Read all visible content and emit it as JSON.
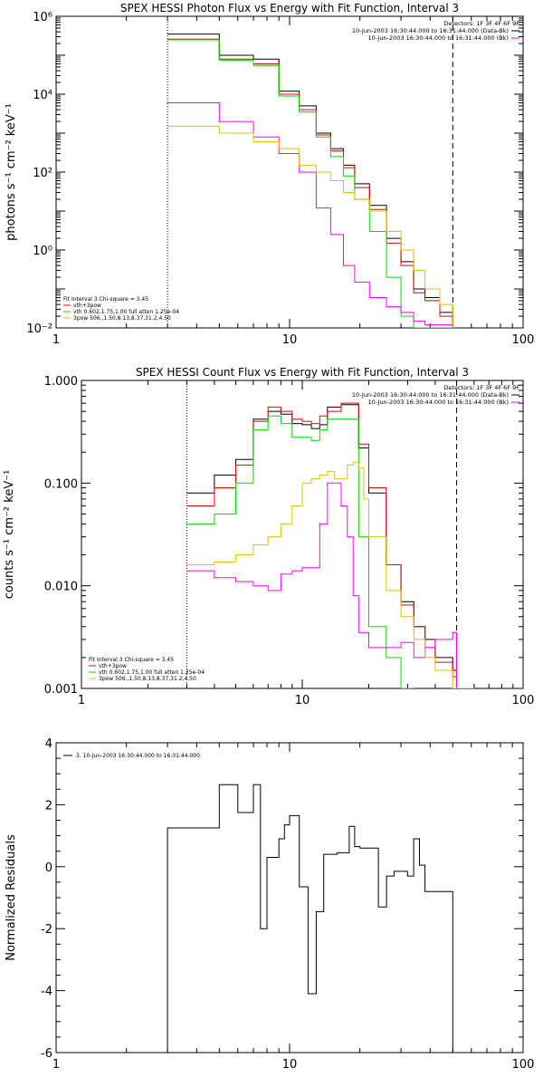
{
  "chart_data": [
    {
      "type": "line",
      "title": "SPEX HESSI Photon Flux vs Energy with Fit Function, Interval 3",
      "ylabel": "photons s⁻¹ cm⁻² keV⁻¹",
      "xscale": "log",
      "yscale": "log",
      "xlim": [
        1,
        100
      ],
      "ylim": [
        0.01,
        1000000
      ],
      "x_ticks": [
        {
          "value": 1,
          "label": "1"
        },
        {
          "value": 10,
          "label": "10"
        },
        {
          "value": 100,
          "label": "100"
        }
      ],
      "y_ticks": [
        {
          "value": 0.01,
          "label": "10⁻²"
        },
        {
          "value": 1,
          "label": "10⁰"
        },
        {
          "value": 100,
          "label": "10²"
        },
        {
          "value": 10000,
          "label": "10⁴"
        },
        {
          "value": 1000000,
          "label": "10⁶"
        }
      ],
      "header_lines": [
        "Detectors: 1F 3F 4F 6F 9F",
        "10-Jun-2003 16:30:44.000 to 16:31:44.000 (Data-Bk)",
        "10-Jun-2003 16:30:44.000 to 16:31:44.000 (Bk)"
      ],
      "legend_lines": [
        "Fit Interval 3   Chi-square = 3.45",
        "vth+3pow",
        "vth 0.602,1.75,1.00  full atten 1.25e-04",
        "3pow 506.,1.50,8.13,8.37,31.2,4.50"
      ],
      "edges": [
        3,
        3.5,
        4,
        4.5,
        5,
        5.5,
        6,
        6.5,
        7,
        7.5,
        8,
        8.5,
        9,
        9.5,
        10,
        11,
        12,
        13,
        14,
        15,
        16,
        17,
        18,
        19,
        20,
        22,
        24,
        26,
        28,
        30,
        32,
        34,
        36,
        38,
        40,
        44,
        48,
        50
      ],
      "vlines": [
        {
          "x": 3,
          "style": "dotted"
        },
        {
          "x": 50,
          "style": "dashed"
        }
      ],
      "series": [
        {
          "name": "Data-Bk",
          "color": "#000000",
          "values": [
            350000,
            350000,
            350000,
            350000,
            100000,
            100000,
            100000,
            100000,
            80000,
            80000,
            80000,
            80000,
            12000,
            12000,
            12000,
            5000,
            5000,
            1000,
            1000,
            400,
            400,
            150,
            150,
            50,
            50,
            14,
            14,
            2,
            2,
            0.5,
            0.5,
            0.1,
            0.1,
            0.06,
            0.06,
            0.025,
            0.025
          ]
        },
        {
          "name": "vth+3pow",
          "color": "#e8000b",
          "values": [
            260000,
            260000,
            260000,
            260000,
            80000,
            80000,
            80000,
            80000,
            60000,
            60000,
            60000,
            60000,
            10000,
            10000,
            10000,
            4000,
            4000,
            900,
            900,
            350,
            350,
            130,
            130,
            40,
            40,
            11,
            11,
            1.5,
            1.5,
            0.4,
            0.4,
            0.08,
            0.08,
            0.05,
            0.05,
            0.02,
            0.02
          ]
        },
        {
          "name": "vth",
          "color": "#00dd00",
          "values": [
            250000,
            250000,
            250000,
            250000,
            75000,
            75000,
            75000,
            75000,
            55000,
            55000,
            55000,
            55000,
            9000,
            9000,
            9000,
            3500,
            3500,
            800,
            800,
            250,
            250,
            80,
            80,
            20,
            20,
            3,
            3,
            0.2,
            0.2,
            0.02,
            0.02,
            0.01,
            0.01,
            0.01,
            0.01,
            0.01,
            0.01
          ]
        },
        {
          "name": "3pow",
          "color": "#ff00ff",
          "values": [
            6000,
            6000,
            6000,
            6000,
            2000,
            2000,
            2000,
            2000,
            800,
            800,
            800,
            800,
            300,
            300,
            300,
            100,
            100,
            12,
            12,
            2.5,
            2.5,
            0.4,
            0.4,
            0.15,
            0.15,
            0.06,
            0.06,
            0.035,
            0.035,
            0.025,
            0.025,
            0.015,
            0.015,
            0.012,
            0.012,
            0.012,
            0.012
          ]
        },
        {
          "name": "pow",
          "color": "#e0c000",
          "values": [
            1500,
            1500,
            1500,
            1500,
            1000,
            1000,
            1000,
            1000,
            600,
            600,
            600,
            600,
            400,
            400,
            400,
            150,
            150,
            100,
            100,
            60,
            60,
            30,
            30,
            20,
            20,
            10,
            10,
            3,
            3,
            1,
            1,
            0.3,
            0.3,
            0.1,
            0.1,
            0.04,
            0.04
          ]
        }
      ]
    },
    {
      "type": "line",
      "title": "SPEX HESSI Count Flux vs Energy with Fit Function, Interval 3",
      "ylabel": "counts s⁻¹ cm⁻² keV⁻¹",
      "xscale": "log",
      "yscale": "log",
      "xlim": [
        1,
        100
      ],
      "ylim": [
        0.001,
        1.0
      ],
      "x_ticks": [
        {
          "value": 1,
          "label": "1"
        },
        {
          "value": 10,
          "label": "10"
        },
        {
          "value": 100,
          "label": "100"
        }
      ],
      "y_ticks": [
        {
          "value": 0.001,
          "label": "0.001"
        },
        {
          "value": 0.01,
          "label": "0.010"
        },
        {
          "value": 0.1,
          "label": "0.100"
        },
        {
          "value": 1.0,
          "label": "1.000"
        }
      ],
      "header_lines": [
        "Detectors: 1F 3F 4F 6F 9F",
        "10-Jun-2003 16:30:44.000 to 16:31:44.000 (Data-Bk)",
        "10-Jun-2003 16:30:44.000 to 16:31:44.000 (Bk)"
      ],
      "legend_lines": [
        "Fit Interval 3   Chi-square = 3.45",
        "vth+3pow",
        "vth 0.602,1.75,1.00  full atten 1.25e-04",
        "3pow 506.,1.50,8.13,8.37,31.2,4.50"
      ],
      "edges": [
        3,
        4,
        5,
        6,
        7,
        8,
        9,
        10,
        11,
        12,
        13,
        14,
        15,
        16,
        17,
        18,
        19,
        20,
        22,
        24,
        26,
        28,
        30,
        32,
        34,
        36,
        38,
        40,
        44,
        48,
        50,
        55,
        60
      ],
      "vlines": [
        {
          "x": 3,
          "style": "dotted"
        },
        {
          "x": 50,
          "style": "dashed"
        }
      ],
      "series": [
        {
          "name": "Data-Bk",
          "color": "#000000",
          "values": [
            0.08,
            0.12,
            0.17,
            0.42,
            0.5,
            0.47,
            0.38,
            0.37,
            0.34,
            0.37,
            0.55,
            0.55,
            0.58,
            0.58,
            0.58,
            0.22,
            0.22,
            0.08,
            0.08,
            0.016,
            0.016,
            0.007,
            0.007,
            0.004,
            0.004,
            0.003,
            0.003,
            0.002,
            0.002,
            0.0015,
            null,
            null
          ]
        },
        {
          "name": "vth+3pow",
          "color": "#e8000b",
          "values": [
            0.06,
            0.09,
            0.15,
            0.4,
            0.55,
            0.5,
            0.42,
            0.4,
            0.38,
            0.45,
            0.5,
            0.5,
            0.6,
            0.6,
            0.6,
            0.24,
            0.24,
            0.09,
            0.09,
            0.016,
            0.016,
            0.0065,
            0.0065,
            0.004,
            0.004,
            0.0025,
            0.0025,
            0.0018,
            0.0018,
            0.0013,
            null,
            null
          ]
        },
        {
          "name": "vth",
          "color": "#00dd00",
          "values": [
            0.04,
            0.05,
            0.1,
            0.33,
            0.45,
            0.38,
            0.28,
            0.28,
            0.26,
            0.33,
            0.42,
            0.42,
            0.42,
            0.42,
            0.42,
            0.03,
            0.03,
            0.004,
            0.004,
            0.002,
            0.002,
            0.001,
            0.001,
            null,
            null,
            null,
            null,
            null,
            null,
            null,
            null,
            null
          ]
        },
        {
          "name": "3pow",
          "color": "#ff00ff",
          "values": [
            0.014,
            0.012,
            0.011,
            0.01,
            0.009,
            0.013,
            0.014,
            0.015,
            0.015,
            0.04,
            0.1,
            0.1,
            0.06,
            0.03,
            0.008,
            0.0035,
            0.0035,
            0.0025,
            0.0025,
            0.0025,
            0.0025,
            0.0028,
            0.0028,
            0.002,
            0.002,
            0.0025,
            0.0025,
            0.003,
            0.003,
            0.0035,
            null,
            null
          ]
        },
        {
          "name": "pow",
          "color": "#e0c000",
          "values": [
            0.016,
            0.017,
            0.02,
            0.025,
            0.03,
            0.04,
            0.06,
            0.1,
            0.11,
            0.12,
            0.13,
            0.11,
            0.11,
            0.15,
            0.16,
            0.14,
            0.07,
            0.03,
            0.03,
            0.009,
            0.009,
            0.005,
            0.005,
            0.003,
            0.003,
            0.002,
            0.002,
            0.0015,
            0.0015,
            0.001,
            0.001,
            0.001
          ]
        }
      ]
    },
    {
      "type": "line",
      "ylabel": "Normalized Residuals",
      "xscale": "log",
      "yscale": "linear",
      "xlim": [
        1,
        100
      ],
      "ylim": [
        -6,
        4
      ],
      "x_ticks": [
        {
          "value": 1,
          "label": "1"
        },
        {
          "value": 10,
          "label": "10"
        },
        {
          "value": 100,
          "label": "100"
        }
      ],
      "y_ticks": [
        {
          "value": -6,
          "label": "-6"
        },
        {
          "value": -4,
          "label": "-4"
        },
        {
          "value": -2,
          "label": "-2"
        },
        {
          "value": 0,
          "label": "0"
        },
        {
          "value": 2,
          "label": "2"
        },
        {
          "value": 4,
          "label": "4"
        }
      ],
      "legend_lines": [
        "3. 10-Jun-2003 16:30:44.000 to 16:31:44.000"
      ],
      "edges": [
        3,
        4,
        5,
        6,
        7,
        7.5,
        8,
        8.5,
        9,
        9.5,
        10,
        11,
        12,
        13,
        14,
        15,
        16,
        17,
        18,
        19,
        20,
        22,
        24,
        26,
        28,
        30,
        32,
        34,
        36,
        38,
        40,
        44,
        48,
        50
      ],
      "vlines": [],
      "series": [
        {
          "name": "3. 10-Jun-2003 16:30:44.000 to 16:31:44.000",
          "color": "#000000",
          "values": [
            1.25,
            1.25,
            2.65,
            1.75,
            2.65,
            -2.0,
            0.3,
            0.3,
            0.9,
            1.35,
            1.65,
            -0.65,
            -4.1,
            -1.45,
            0.4,
            0.4,
            0.45,
            0.45,
            1.3,
            0.65,
            0.6,
            0.6,
            -1.3,
            -0.3,
            -0.15,
            -0.15,
            -0.3,
            0.9,
            0.05,
            -0.8,
            -0.8,
            -0.8,
            -0.8
          ]
        }
      ]
    }
  ]
}
